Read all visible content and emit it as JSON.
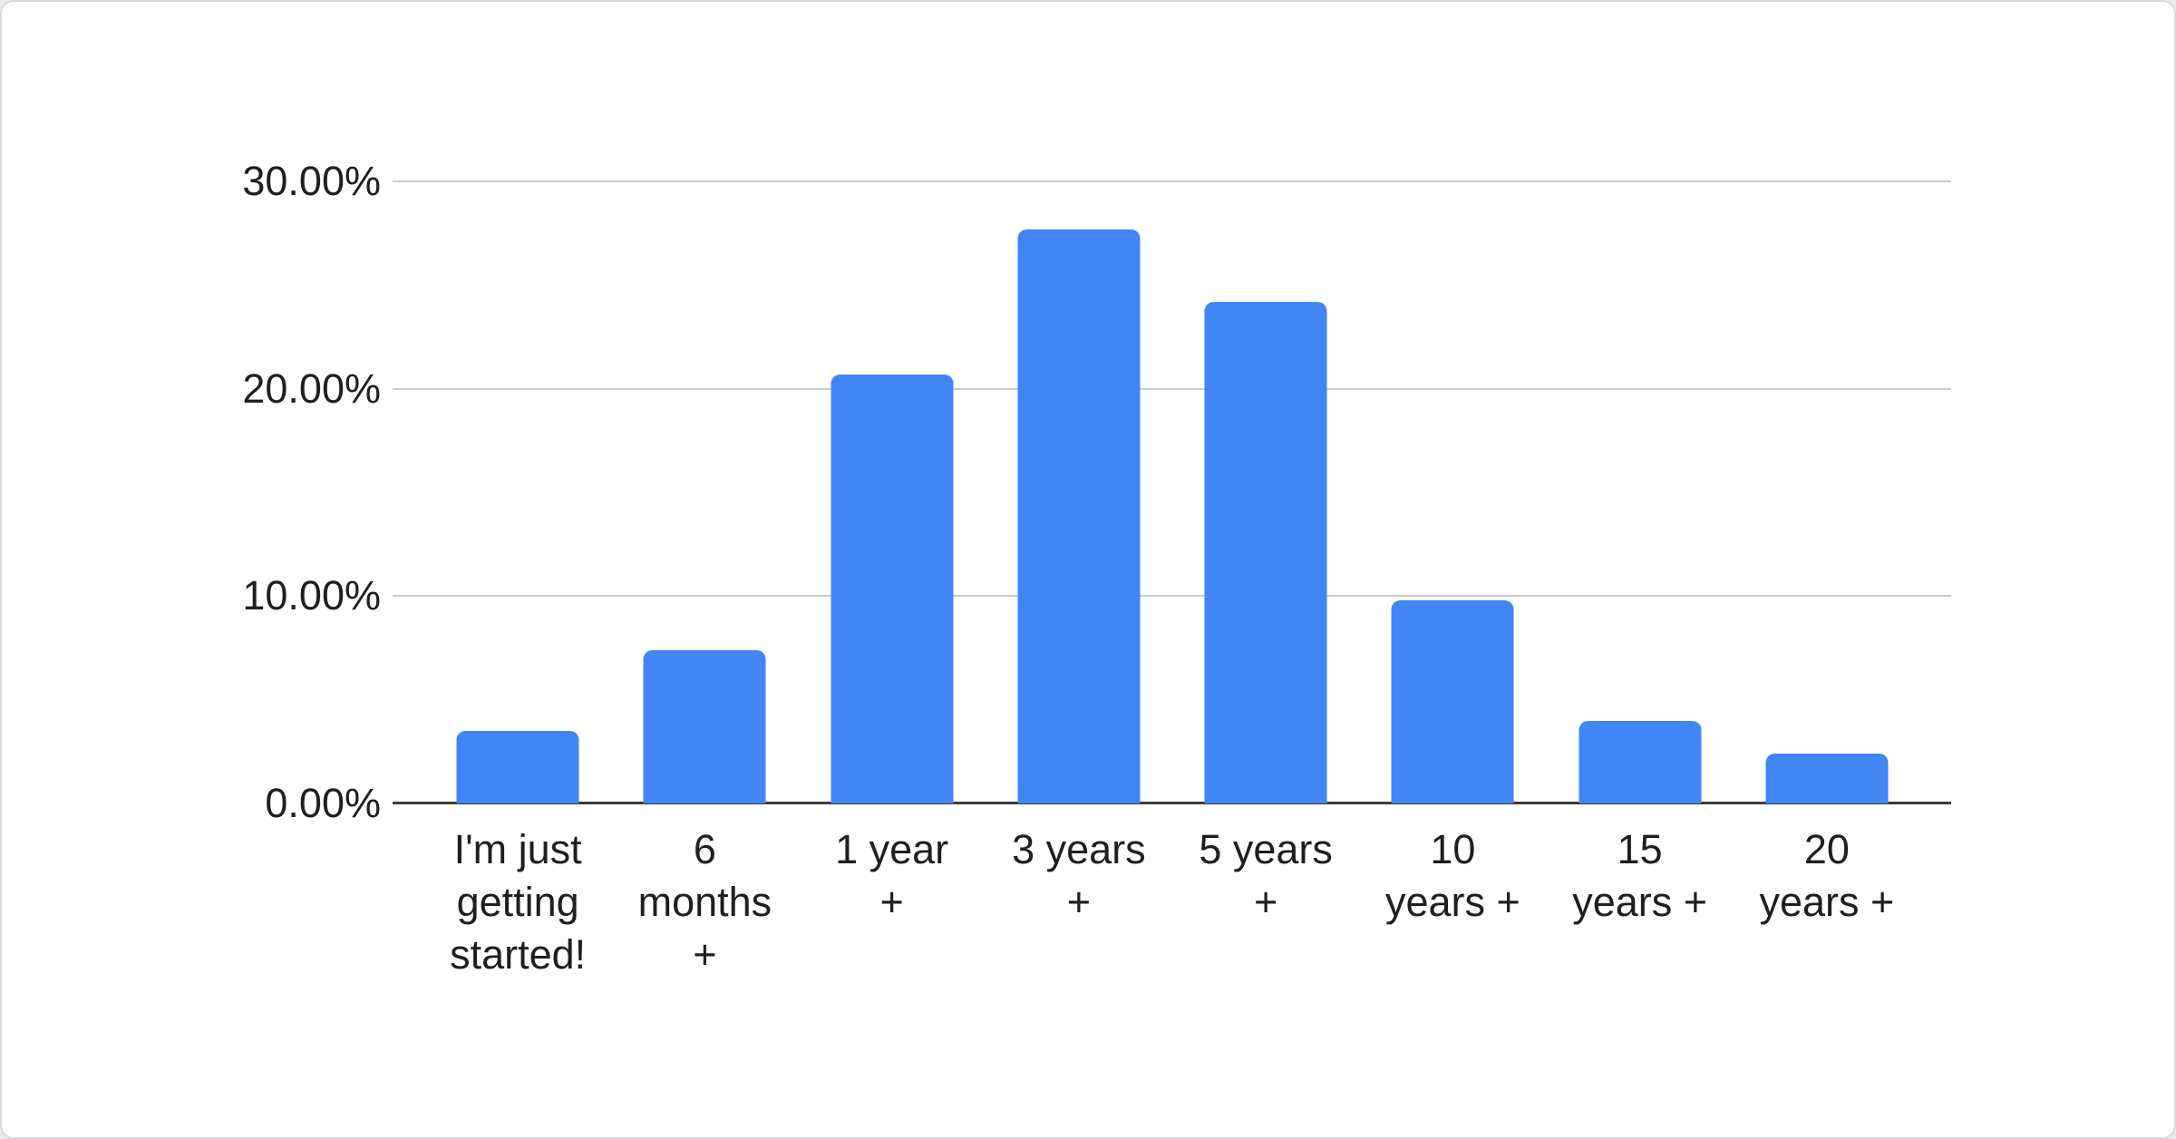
{
  "chart_data": {
    "type": "bar",
    "title": "",
    "xlabel": "",
    "ylabel": "",
    "categories": [
      "I'm just getting started!",
      "6 months +",
      "1 year +",
      "3 years +",
      "5 years +",
      "10 years +",
      "15 years +",
      "20 years +"
    ],
    "category_lines": [
      "I'm just\ngetting\nstarted!",
      "6\nmonths\n+",
      "1 year\n+",
      "3 years\n+",
      "5 years\n+",
      "10\nyears +",
      "15\nyears +",
      "20\nyears +"
    ],
    "values": [
      3.5,
      7.4,
      20.7,
      27.7,
      24.2,
      9.8,
      4.0,
      2.4
    ],
    "ylim": [
      0,
      30
    ],
    "yticks": [
      {
        "value": 30,
        "label": "30.00%"
      },
      {
        "value": 20,
        "label": "20.00%"
      },
      {
        "value": 10,
        "label": "10.00%"
      },
      {
        "value": 0,
        "label": "0.00%"
      }
    ],
    "grid": true,
    "legend_position": "none",
    "colors": {
      "bar": "#4285f4",
      "gridline": "#cccccc",
      "axis_line": "#3b3b3b",
      "tick_text": "#1f1f1f",
      "card_background": "#ffffff",
      "card_border": "#d8dade",
      "page_background": "#e9ebee"
    }
  }
}
